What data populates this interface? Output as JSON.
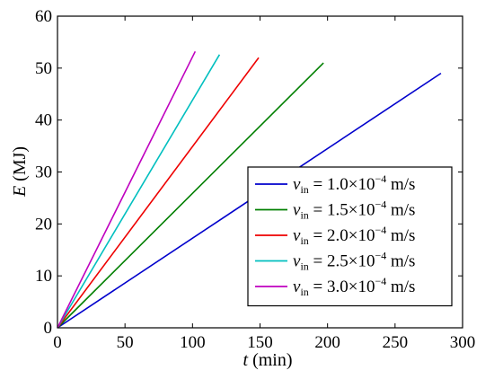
{
  "chart_data": {
    "type": "line",
    "xlabel_var": "t",
    "xlabel_unit": "(min)",
    "ylabel_var": "E",
    "ylabel_unit": "(MJ)",
    "xlim": [
      0,
      300
    ],
    "ylim": [
      0,
      60
    ],
    "xticks": [
      0,
      50,
      100,
      150,
      200,
      250,
      300
    ],
    "yticks": [
      0,
      10,
      20,
      30,
      40,
      50,
      60
    ],
    "grid": false,
    "legend_position": "bottom-right",
    "series": [
      {
        "var": "v",
        "sub": "in",
        "coef": "1.0",
        "exp": "−4",
        "unit": "m/s",
        "name": "v_in = 1.0×10^−4 m/s",
        "color": "#0000cc",
        "x": [
          0,
          284
        ],
        "y": [
          0,
          49
        ]
      },
      {
        "var": "v",
        "sub": "in",
        "coef": "1.5",
        "exp": "−4",
        "unit": "m/s",
        "name": "v_in = 1.5×10^−4 m/s",
        "color": "#007f00",
        "x": [
          0,
          197
        ],
        "y": [
          0,
          51
        ]
      },
      {
        "var": "v",
        "sub": "in",
        "coef": "2.0",
        "exp": "−4",
        "unit": "m/s",
        "name": "v_in = 2.0×10^−4 m/s",
        "color": "#ee0000",
        "x": [
          0,
          149
        ],
        "y": [
          0,
          52
        ]
      },
      {
        "var": "v",
        "sub": "in",
        "coef": "2.5",
        "exp": "−4",
        "unit": "m/s",
        "name": "v_in = 2.5×10^−4 m/s",
        "color": "#00bfbf",
        "x": [
          0,
          120
        ],
        "y": [
          0,
          52.6
        ]
      },
      {
        "var": "v",
        "sub": "in",
        "coef": "3.0",
        "exp": "−4",
        "unit": "m/s",
        "name": "v_in = 3.0×10^−4 m/s",
        "color": "#bf00bf",
        "x": [
          0,
          102
        ],
        "y": [
          0,
          53.2
        ]
      }
    ]
  }
}
